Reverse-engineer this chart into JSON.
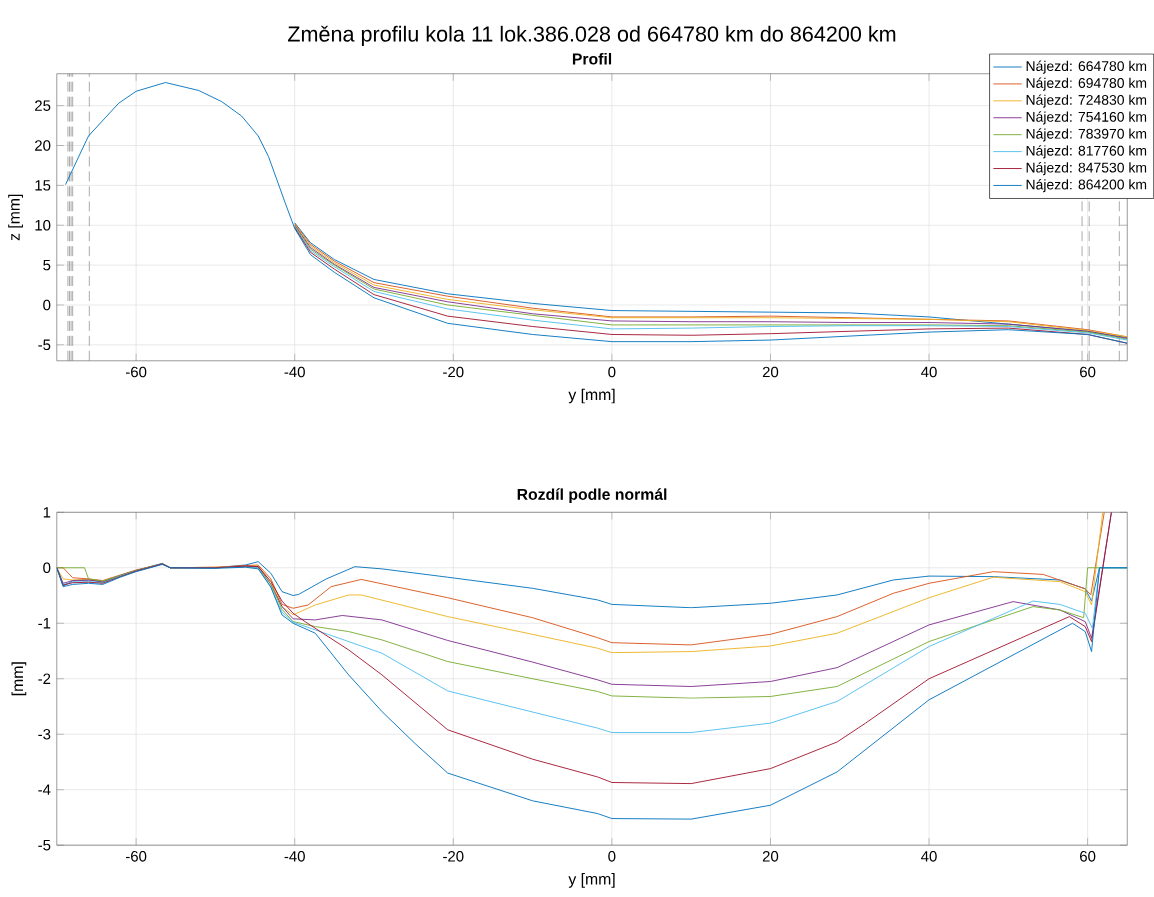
{
  "chart_data": [
    {
      "type": "line",
      "title": "Změna profilu kola 11 lok.386.028 od 664780 km do 864200 km",
      "subtitle": "Profil",
      "xlabel": "y [mm]",
      "ylabel": "z [mm]",
      "xlim": [
        -70,
        65
      ],
      "ylim": [
        -7,
        29
      ],
      "xticks": [
        -60,
        -40,
        -20,
        0,
        20,
        40,
        60
      ],
      "yticks": [
        -5,
        0,
        5,
        10,
        15,
        20,
        25
      ],
      "grid": true,
      "legend": "top right",
      "marker": "none",
      "line_style": "solid",
      "x": [
        -68.9,
        -66,
        -62.2,
        -60,
        -56.3,
        -52.1,
        -49.2,
        -46.7,
        -44.6,
        -43.3,
        -42.1,
        -41.2,
        -40,
        -38,
        -35,
        -30,
        -20.7,
        -10,
        0,
        10,
        20,
        30,
        40,
        50,
        60,
        65
      ],
      "ref_lines": [
        {
          "axis": "x",
          "value": -68.6,
          "color": "#808080",
          "line_style": "dashed"
        },
        {
          "axis": "x",
          "value": -68.4,
          "color": "#808080",
          "line_style": "dashed"
        },
        {
          "axis": "x",
          "value": -68.2,
          "color": "#808080",
          "line_style": "dashed"
        },
        {
          "axis": "x",
          "value": -68.0,
          "color": "#808080",
          "line_style": "dashed"
        },
        {
          "axis": "x",
          "value": -65.9,
          "color": "#808080",
          "line_style": "dashed"
        },
        {
          "axis": "x",
          "value": 59.3,
          "color": "#808080",
          "line_style": "dashed"
        },
        {
          "axis": "x",
          "value": 60.2,
          "color": "#808080",
          "line_style": "dashed"
        },
        {
          "axis": "x",
          "value": 64.0,
          "color": "#808080",
          "line_style": "dashed"
        }
      ],
      "series": [
        {
          "name": "Nájezd: 664780 km",
          "color": "#0072bd",
          "values": [
            null,
            null,
            null,
            null,
            null,
            null,
            null,
            null,
            null,
            null,
            null,
            null,
            10.3,
            7.8,
            5.7,
            3.2,
            1.4,
            0.2,
            -0.7,
            -0.8,
            -0.9,
            -1.0,
            -1.5,
            -2.4,
            -3.3,
            -4.1
          ]
        },
        {
          "name": "Nájezd: 694780 km",
          "color": "#d95319",
          "values": [
            null,
            null,
            null,
            null,
            null,
            null,
            null,
            null,
            null,
            null,
            null,
            null,
            10.2,
            7.6,
            5.5,
            2.8,
            1.1,
            -0.4,
            -1.5,
            -1.5,
            -1.4,
            -1.6,
            -1.8,
            -2.0,
            -3.1,
            -4.0
          ]
        },
        {
          "name": "Nájezd: 724830 km",
          "color": "#edb120",
          "values": [
            null,
            null,
            null,
            null,
            null,
            null,
            null,
            null,
            null,
            null,
            null,
            null,
            10.1,
            7.4,
            5.3,
            2.5,
            0.7,
            -0.6,
            -1.6,
            -1.6,
            -1.6,
            -1.7,
            -1.8,
            -2.1,
            -3.2,
            -4.0
          ]
        },
        {
          "name": "Nájezd: 754160 km",
          "color": "#7e2f8e",
          "values": [
            null,
            null,
            null,
            null,
            null,
            null,
            null,
            null,
            null,
            null,
            null,
            null,
            10.0,
            7.2,
            5.1,
            2.2,
            0.4,
            -1.1,
            -2.0,
            -2.1,
            -2.1,
            -2.2,
            -2.2,
            -2.4,
            -3.3,
            -4.2
          ]
        },
        {
          "name": "Nájezd: 783970 km",
          "color": "#77ac30",
          "values": [
            null,
            null,
            null,
            null,
            null,
            null,
            null,
            null,
            null,
            null,
            null,
            null,
            9.9,
            7.0,
            5.0,
            2.0,
            0.0,
            -1.3,
            -2.5,
            -2.5,
            -2.5,
            -2.5,
            -2.5,
            -2.6,
            -3.4,
            -4.3
          ]
        },
        {
          "name": "Nájezd: 817760 km",
          "color": "#4dbeee",
          "values": [
            null,
            null,
            null,
            null,
            null,
            null,
            null,
            null,
            null,
            null,
            null,
            null,
            9.8,
            6.8,
            4.8,
            1.7,
            -0.5,
            -1.9,
            -3.0,
            -2.9,
            -2.7,
            -2.6,
            -2.6,
            -2.7,
            -3.5,
            -4.4
          ]
        },
        {
          "name": "Nájezd: 847530 km",
          "color": "#a2142f",
          "values": [
            null,
            null,
            null,
            null,
            null,
            null,
            null,
            null,
            null,
            null,
            null,
            null,
            9.7,
            6.6,
            4.5,
            1.3,
            -1.4,
            -2.7,
            -3.7,
            -3.8,
            -3.6,
            -3.3,
            -3.0,
            -2.9,
            -3.7,
            -4.8
          ]
        },
        {
          "name": "Nájezd: 864200 km",
          "color": "#0072bd",
          "values": [
            15.1,
            21.2,
            25.3,
            26.8,
            27.9,
            26.9,
            25.5,
            23.7,
            21.2,
            18.6,
            15.3,
            12.8,
            9.6,
            6.3,
            4.1,
            0.9,
            -2.3,
            -3.7,
            -4.6,
            -4.6,
            -4.4,
            -3.9,
            -3.4,
            -3.1,
            -3.7,
            -4.8
          ]
        }
      ]
    },
    {
      "type": "line",
      "title": "Rozdíl podle normál",
      "xlabel": "y [mm]",
      "ylabel": "[mm]",
      "xlim": [
        -70,
        65
      ],
      "ylim": [
        -5,
        1
      ],
      "xticks": [
        -60,
        -40,
        -20,
        0,
        20,
        40,
        60
      ],
      "yticks": [
        -5,
        -4,
        -3,
        -2,
        -1,
        0,
        1
      ],
      "grid": true,
      "marker": "none",
      "line_style": "solid",
      "series": [
        {
          "color": "#0072bd",
          "x": [
            -70,
            -69.2,
            -68,
            -66,
            -64.2,
            -62,
            -60,
            -56.7,
            -55.7,
            -50,
            -46.2,
            -44.6,
            -43,
            -41.6,
            -40.2,
            -39.5,
            -36,
            -32.4,
            -29,
            -20.7,
            -10,
            -1.8,
            0,
            10,
            20,
            28.4,
            35.5,
            40,
            48.1,
            56.5,
            59.7,
            60.5,
            61.5,
            65
          ],
          "values": [
            0,
            -0.33,
            -0.24,
            -0.22,
            -0.26,
            -0.14,
            -0.05,
            0.08,
            0,
            0.0,
            0.05,
            0.11,
            -0.1,
            -0.43,
            -0.5,
            -0.48,
            -0.2,
            0.02,
            -0.02,
            -0.17,
            -0.37,
            -0.58,
            -0.66,
            -0.72,
            -0.64,
            -0.49,
            -0.22,
            -0.15,
            -0.16,
            -0.22,
            -0.38,
            -0.6,
            0,
            0
          ]
        },
        {
          "color": "#d95319",
          "x": [
            -70,
            -69.2,
            -68,
            -66,
            -64.2,
            -62,
            -60,
            -56.7,
            -55.7,
            -50,
            -46.2,
            -44.6,
            -43,
            -41.6,
            -40.2,
            -38.3,
            -35.4,
            -31.6,
            -20.7,
            -10,
            -1.8,
            0,
            10,
            20,
            28.4,
            35.5,
            40,
            48.1,
            54.4,
            59.7,
            60.4,
            62.1
          ],
          "values": [
            0,
            0,
            -0.18,
            -0.2,
            -0.23,
            -0.13,
            -0.04,
            0.07,
            0,
            0.01,
            0.04,
            0.05,
            -0.2,
            -0.66,
            -0.73,
            -0.67,
            -0.34,
            -0.21,
            -0.54,
            -0.9,
            -1.26,
            -1.35,
            -1.39,
            -1.2,
            -0.88,
            -0.46,
            -0.28,
            -0.07,
            -0.12,
            -0.38,
            -0.49,
            1
          ]
        },
        {
          "color": "#edb120",
          "x": [
            -70,
            -69.2,
            -68,
            -66,
            -64.2,
            -62,
            -60,
            -56.7,
            -55.7,
            -50,
            -46.2,
            -44.6,
            -43,
            -41.6,
            -40.2,
            -37.4,
            -33.2,
            -31.6,
            -20.7,
            -10,
            -1.8,
            0,
            10,
            20,
            28.4,
            40,
            48.1,
            56.5,
            59.7,
            60.5,
            61.9
          ],
          "values": [
            0,
            -0.2,
            -0.22,
            -0.21,
            -0.24,
            -0.14,
            -0.05,
            0.07,
            0,
            0.01,
            0.03,
            0.03,
            -0.25,
            -0.7,
            -0.85,
            -0.67,
            -0.49,
            -0.49,
            -0.88,
            -1.2,
            -1.45,
            -1.53,
            -1.51,
            -1.41,
            -1.18,
            -0.54,
            -0.17,
            -0.25,
            -0.43,
            -0.67,
            1
          ]
        },
        {
          "color": "#7e2f8e",
          "x": [
            -70,
            -69.2,
            -68,
            -66,
            -64.2,
            -62,
            -60,
            -56.7,
            -55.7,
            -50,
            -46.2,
            -44.6,
            -43,
            -41.6,
            -40.2,
            -37.4,
            -34,
            -29,
            -20.7,
            -10,
            -1.8,
            0,
            10,
            20,
            28.4,
            40,
            50.6,
            56.5,
            59.7,
            60.5,
            63
          ],
          "values": [
            0,
            -0.28,
            -0.23,
            -0.22,
            -0.25,
            -0.14,
            -0.05,
            0.07,
            0,
            0.0,
            0.03,
            0.02,
            -0.3,
            -0.7,
            -0.92,
            -0.94,
            -0.86,
            -0.94,
            -1.31,
            -1.7,
            -2.02,
            -2.1,
            -2.14,
            -2.05,
            -1.8,
            -1.03,
            -0.61,
            -0.76,
            -0.97,
            -1.27,
            1
          ]
        },
        {
          "color": "#77ac30",
          "x": [
            -70,
            -66.5,
            -66,
            -64.2,
            -62,
            -60,
            -56.7,
            -55.7,
            -50,
            -46.2,
            -44.6,
            -43,
            -41.6,
            -40.2,
            -37.4,
            -33.2,
            -29,
            -20.7,
            -10,
            -1.8,
            0,
            10,
            20,
            28.4,
            40,
            53.1,
            56.5,
            59.5,
            60,
            65
          ],
          "values": [
            0,
            0,
            -0.2,
            -0.24,
            -0.14,
            -0.05,
            0.07,
            0,
            0.0,
            0.02,
            0.0,
            -0.3,
            -0.75,
            -0.97,
            -1.06,
            -1.15,
            -1.3,
            -1.69,
            -2.0,
            -2.23,
            -2.31,
            -2.35,
            -2.32,
            -2.14,
            -1.33,
            -0.7,
            -0.76,
            -0.9,
            0,
            0
          ]
        },
        {
          "color": "#4dbeee",
          "x": [
            -70,
            -69.2,
            -68,
            -66,
            -64.2,
            -62,
            -60,
            -56.7,
            -55.7,
            -50,
            -46.2,
            -44.6,
            -43,
            -41.6,
            -40.2,
            -37.4,
            -33.2,
            -29,
            -20.7,
            -10,
            -1.8,
            0,
            10,
            20,
            28.4,
            40,
            53.1,
            56.5,
            59.7,
            60.6,
            61.5,
            65
          ],
          "values": [
            0,
            -0.3,
            -0.26,
            -0.25,
            -0.27,
            -0.15,
            -0.06,
            0.07,
            0,
            0.0,
            0.02,
            0.0,
            -0.35,
            -0.8,
            -0.98,
            -1.12,
            -1.33,
            -1.54,
            -2.22,
            -2.6,
            -2.89,
            -2.97,
            -2.97,
            -2.8,
            -2.41,
            -1.42,
            -0.6,
            -0.66,
            -0.82,
            -1.09,
            0,
            0
          ]
        },
        {
          "color": "#a2142f",
          "x": [
            -70,
            -69.2,
            -68,
            -66,
            -64.2,
            -62,
            -60,
            -56.7,
            -55.7,
            -50,
            -46.2,
            -44.6,
            -43,
            -41.6,
            -40.2,
            -38.6,
            -33.2,
            -29,
            -20.7,
            -10,
            -1.8,
            0,
            10,
            20,
            28.4,
            32,
            40,
            57.7,
            59.7,
            60.5,
            63
          ],
          "values": [
            0,
            -0.31,
            -0.27,
            -0.26,
            -0.28,
            -0.16,
            -0.06,
            0.07,
            0,
            0.0,
            0.03,
            0.02,
            -0.25,
            -0.6,
            -0.82,
            -0.98,
            -1.48,
            -1.93,
            -2.92,
            -3.45,
            -3.77,
            -3.87,
            -3.89,
            -3.62,
            -3.14,
            -2.8,
            -2.0,
            -0.88,
            -1.06,
            -1.33,
            1
          ]
        },
        {
          "color": "#0072bd",
          "x": [
            -70,
            -69.2,
            -68,
            -66,
            -64.2,
            -62,
            -60,
            -56.7,
            -55.7,
            -50,
            -46.2,
            -44.6,
            -43,
            -41.6,
            -40.2,
            -37.4,
            -33.2,
            -29,
            -24.8,
            -20.7,
            -10,
            -1.8,
            0,
            10,
            20,
            28.4,
            40,
            58.1,
            59.7,
            60.5,
            61.5,
            65
          ],
          "values": [
            0,
            -0.34,
            -0.3,
            -0.28,
            -0.3,
            -0.17,
            -0.07,
            0.06,
            0,
            -0.01,
            0.01,
            -0.02,
            -0.35,
            -0.85,
            -1.0,
            -1.18,
            -1.93,
            -2.59,
            -3.17,
            -3.7,
            -4.2,
            -4.43,
            -4.52,
            -4.53,
            -4.28,
            -3.68,
            -2.38,
            -1.0,
            -1.15,
            -1.51,
            0,
            0
          ]
        }
      ]
    }
  ]
}
